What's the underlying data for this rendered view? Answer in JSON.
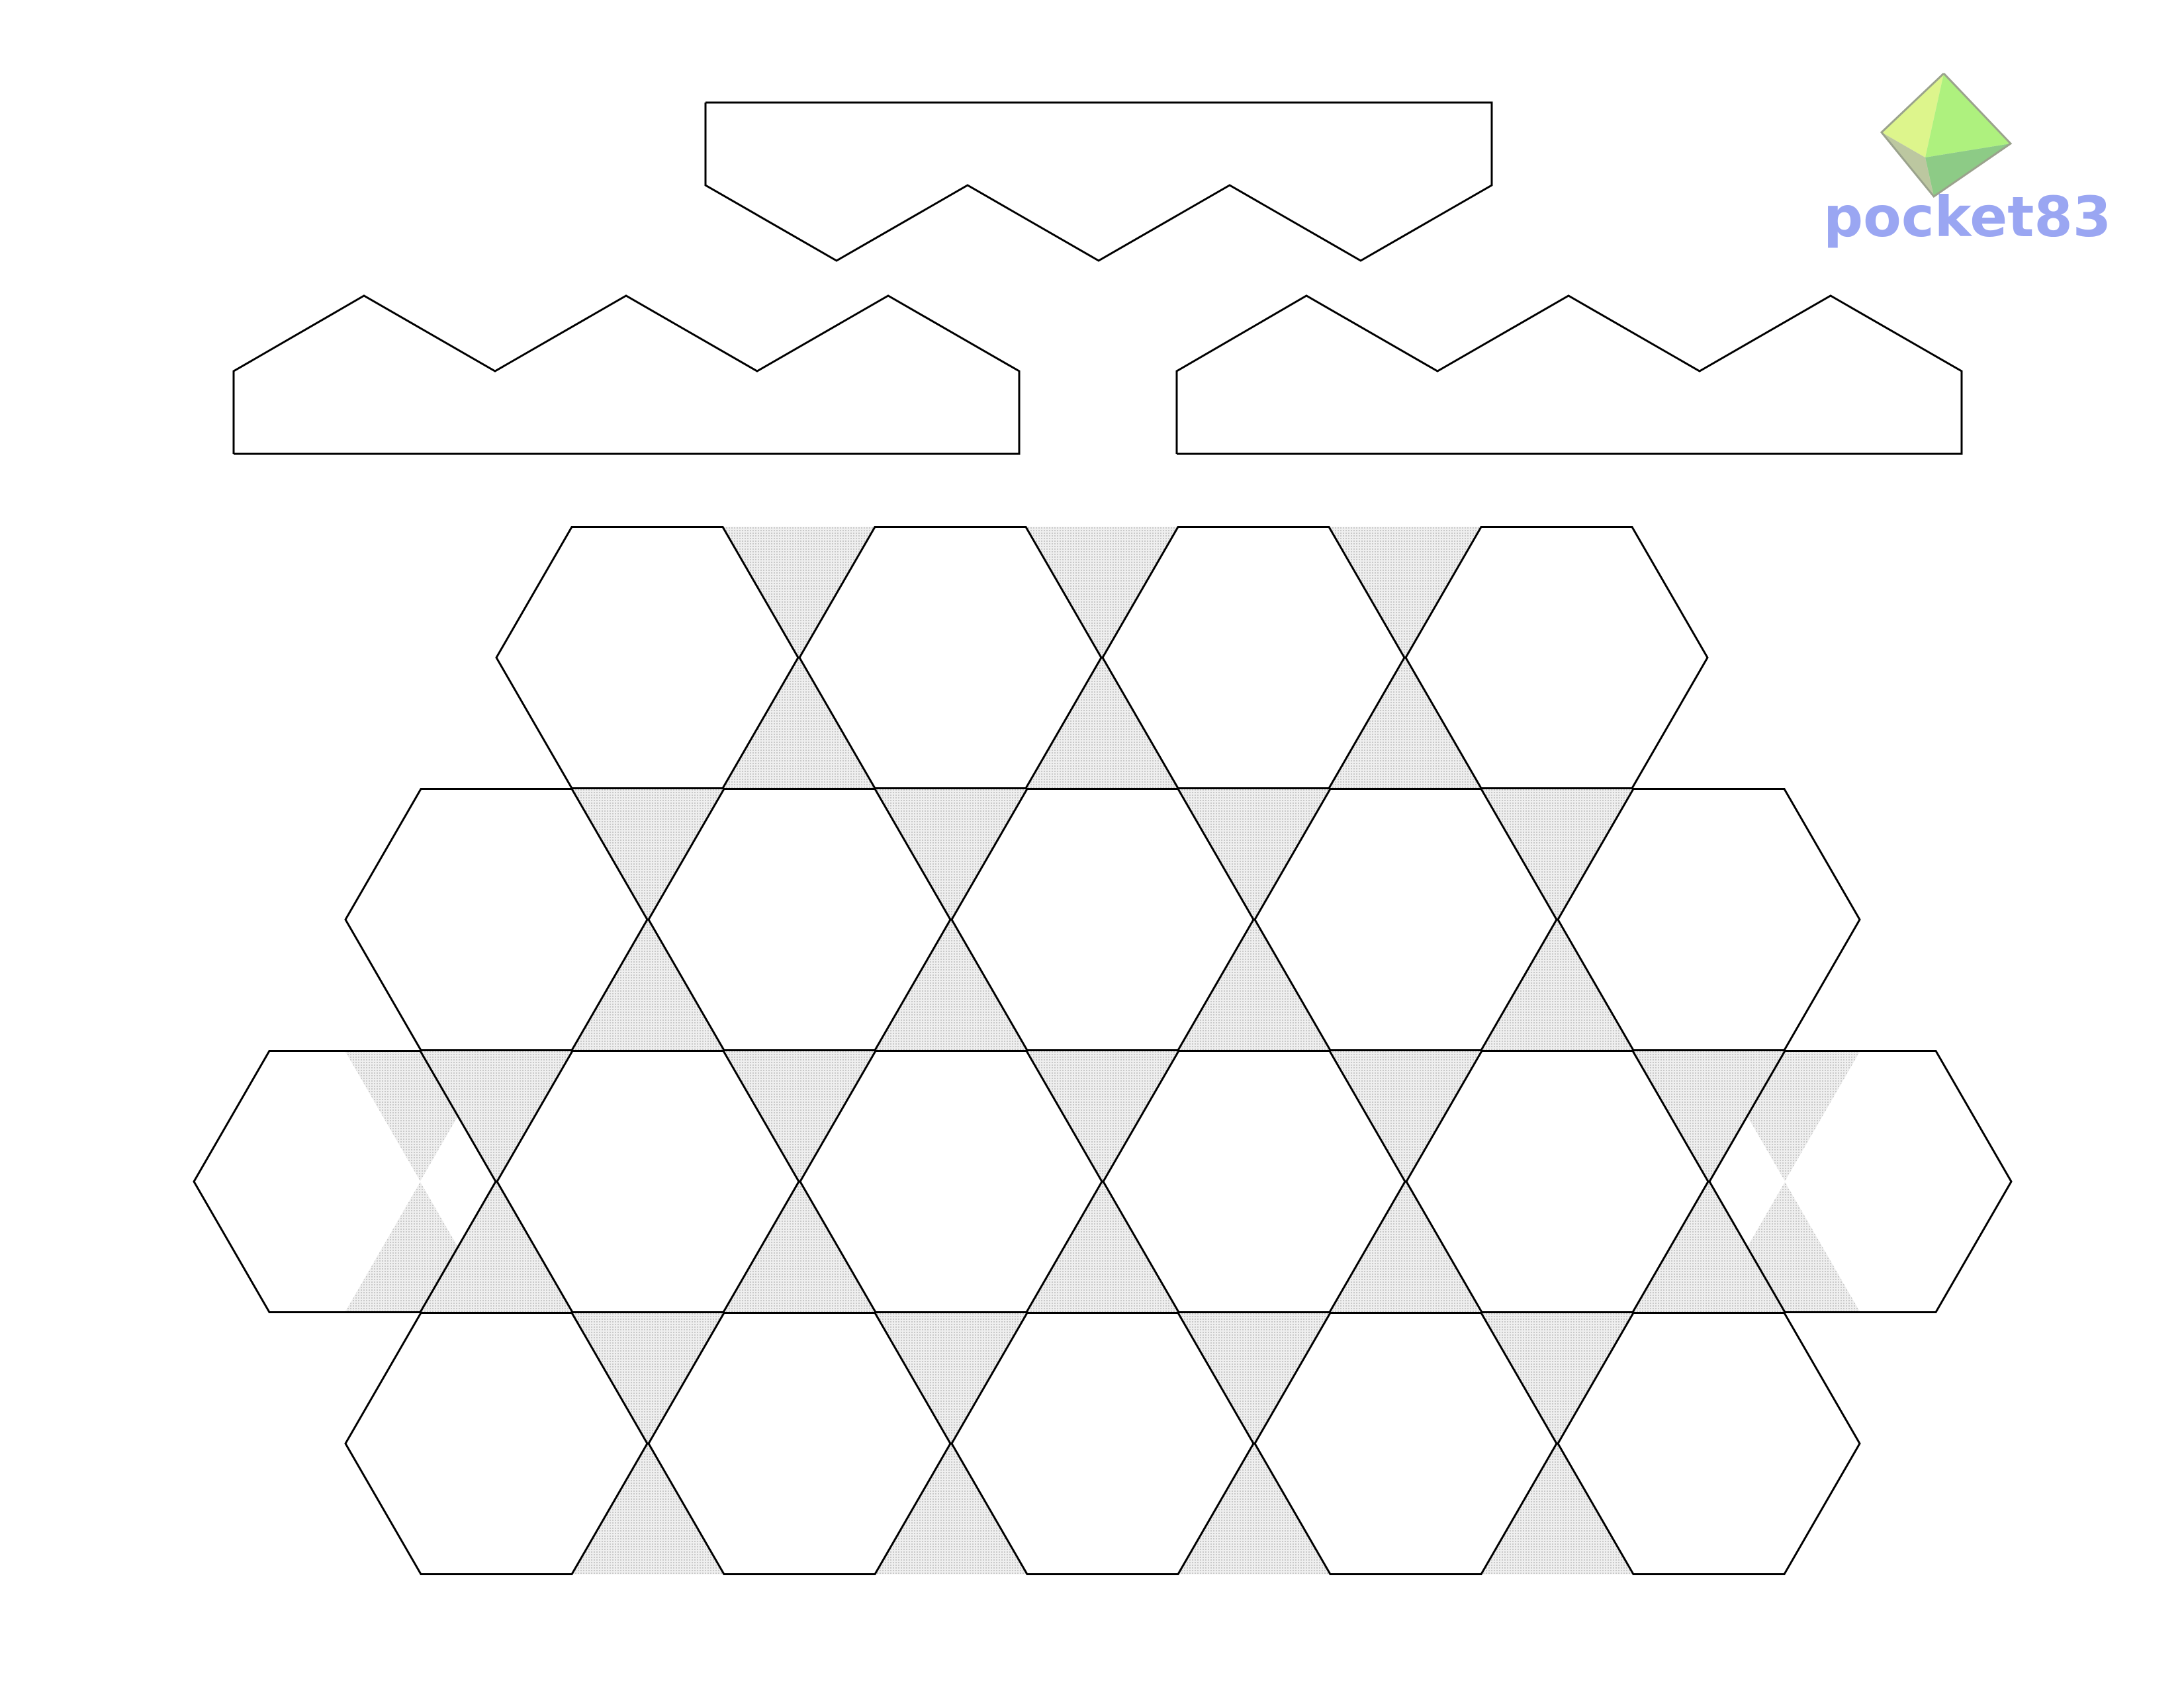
{
  "logo": {
    "text": "pocket83",
    "text_color": "#9aa6f2",
    "icon_name": "octahedron-icon",
    "icon_colors": {
      "face_left": "#ddf58c",
      "face_right": "#aef17e",
      "face_bottom": "#8dcb86",
      "face_edge": "#bcc7a0",
      "outline": "#9aa28c"
    }
  },
  "styles": {
    "line_color": "#000000",
    "shade_color": "#d9d9d9",
    "paper_color": "#ffffff"
  }
}
